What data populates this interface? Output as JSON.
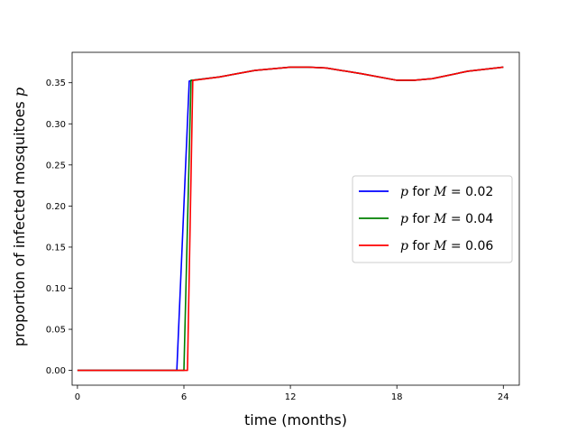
{
  "chart_data": {
    "type": "line",
    "xlabel": "time (months)",
    "ylabel": "proportion of infected mosquitoes p",
    "xlim": [
      -0.3,
      24.9
    ],
    "ylim": [
      -0.018,
      0.387
    ],
    "x_ticks": [
      0,
      6,
      12,
      18,
      24
    ],
    "x_tick_labels": [
      "0",
      "6",
      "12",
      "18",
      "24"
    ],
    "y_ticks": [
      0.0,
      0.05,
      0.1,
      0.15,
      0.2,
      0.25,
      0.3,
      0.35
    ],
    "y_tick_labels": [
      "0.00",
      "0.05",
      "0.10",
      "0.15",
      "0.20",
      "0.25",
      "0.30",
      "0.35"
    ],
    "grid": false,
    "legend_position": "center-right",
    "series": [
      {
        "name": "p for M = 0.02",
        "legend": {
          "prefix": "p",
          "mid": " for ",
          "var": "M",
          "eq": " = 0.02"
        },
        "color": "#0000ff",
        "x": [
          0,
          5.6,
          6.3,
          6.5,
          8,
          10,
          12,
          13,
          14,
          16,
          18,
          18.5,
          19,
          20,
          22,
          24
        ],
        "y": [
          0,
          0,
          0.352,
          0.353,
          0.357,
          0.365,
          0.369,
          0.369,
          0.368,
          0.361,
          0.353,
          0.353,
          0.353,
          0.355,
          0.364,
          0.369
        ]
      },
      {
        "name": "p for M = 0.04",
        "legend": {
          "prefix": "p",
          "mid": " for ",
          "var": "M",
          "eq": " = 0.04"
        },
        "color": "#008000",
        "x": [
          0,
          6.0,
          6.4,
          6.5,
          8,
          10,
          12,
          13,
          14,
          16,
          18,
          18.5,
          19,
          20,
          22,
          24
        ],
        "y": [
          0,
          0,
          0.353,
          0.353,
          0.357,
          0.365,
          0.369,
          0.369,
          0.368,
          0.361,
          0.353,
          0.353,
          0.353,
          0.355,
          0.364,
          0.369
        ]
      },
      {
        "name": "p for M = 0.06",
        "legend": {
          "prefix": "p",
          "mid": " for ",
          "var": "M",
          "eq": " = 0.06"
        },
        "color": "#ff0000",
        "x": [
          0,
          6.2,
          6.5,
          6.6,
          8,
          10,
          12,
          13,
          14,
          16,
          18,
          18.5,
          19,
          20,
          22,
          24
        ],
        "y": [
          0,
          0,
          0.353,
          0.353,
          0.357,
          0.365,
          0.369,
          0.369,
          0.368,
          0.361,
          0.353,
          0.353,
          0.353,
          0.355,
          0.364,
          0.369
        ]
      }
    ]
  }
}
